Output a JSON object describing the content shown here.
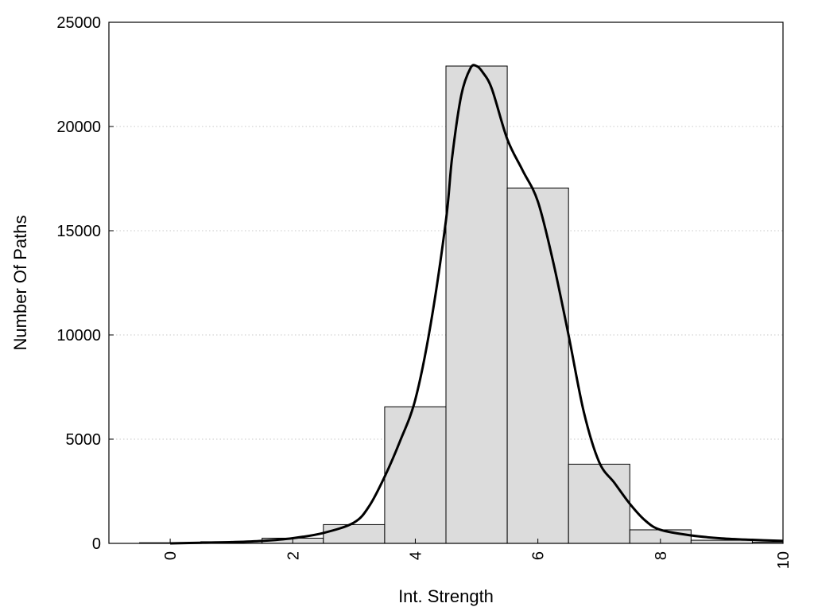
{
  "chart_data": {
    "type": "bar",
    "xlabel": "Int. Strength",
    "ylabel": "Number Of Paths",
    "xlim": [
      -1,
      10
    ],
    "ylim": [
      0,
      25000
    ],
    "x_ticks": [
      "0",
      "2",
      "4",
      "6",
      "8",
      "10"
    ],
    "y_ticks": [
      "0",
      "5000",
      "10000",
      "15000",
      "20000",
      "25000"
    ],
    "grid": "horizontal dotted",
    "colors": {
      "bar_fill": "#dcdcdc",
      "bar_stroke": "#000000",
      "curve": "#000000",
      "grid": "#c8c8c8"
    },
    "bins": [
      {
        "x": 0,
        "value": 30
      },
      {
        "x": 1,
        "value": 80
      },
      {
        "x": 2,
        "value": 250
      },
      {
        "x": 3,
        "value": 900
      },
      {
        "x": 4,
        "value": 6550
      },
      {
        "x": 5,
        "value": 22900
      },
      {
        "x": 6,
        "value": 17050
      },
      {
        "x": 7,
        "value": 3800
      },
      {
        "x": 8,
        "value": 650
      },
      {
        "x": 9,
        "value": 150
      },
      {
        "x": 10,
        "value": 60
      }
    ],
    "bin_width": 1,
    "fit_curve": {
      "x": [
        0,
        0.5,
        1,
        1.5,
        2,
        2.5,
        3,
        3.25,
        3.5,
        3.75,
        4,
        4.25,
        4.5,
        4.6,
        4.75,
        4.9,
        5,
        5.1,
        5.25,
        5.5,
        5.75,
        6,
        6.25,
        6.5,
        6.75,
        7,
        7.25,
        7.5,
        7.75,
        8,
        8.5,
        9,
        9.5,
        10
      ],
      "y": [
        0,
        30,
        60,
        120,
        250,
        500,
        1000,
        1800,
        3200,
        4900,
        6900,
        10500,
        15500,
        18500,
        21500,
        22800,
        22900,
        22600,
        21800,
        19400,
        17900,
        16400,
        13500,
        10000,
        6300,
        3900,
        2900,
        1900,
        1100,
        650,
        380,
        240,
        170,
        120
      ]
    }
  }
}
